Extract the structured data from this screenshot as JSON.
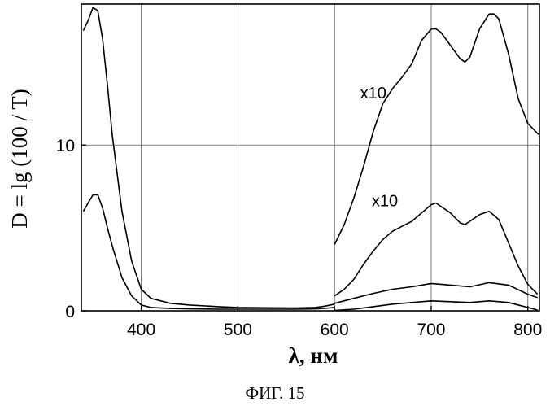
{
  "chart_data": {
    "type": "line",
    "xlabel": "λ, нм",
    "ylabel": "D = lg (100 / T)",
    "caption": "ФИГ. 15",
    "xlim": [
      338,
      812
    ],
    "ylim": [
      0,
      18.5
    ],
    "x_ticks": [
      "400",
      "500",
      "600",
      "700",
      "800"
    ],
    "y_ticks": [
      "0",
      "10"
    ],
    "grid": "on",
    "annotations": [
      {
        "text": "x10",
        "x": 640,
        "y": 12.8
      },
      {
        "text": "x10",
        "x": 652,
        "y": 6.3
      }
    ],
    "series": [
      {
        "x": [
          340,
          345,
          350,
          355,
          360,
          365,
          370,
          380,
          390,
          400,
          410,
          430,
          450,
          480,
          500,
          530,
          560,
          580,
          590,
          600
        ],
        "y": [
          16.9,
          17.5,
          18.3,
          18.1,
          16.4,
          13.6,
          10.6,
          6.0,
          3.0,
          1.3,
          0.75,
          0.45,
          0.35,
          0.25,
          0.2,
          0.18,
          0.17,
          0.2,
          0.28,
          0.4
        ]
      },
      {
        "x": [
          340,
          345,
          350,
          355,
          360,
          365,
          370,
          380,
          390,
          400,
          410,
          430,
          450,
          480,
          500,
          530,
          560,
          580,
          590,
          600
        ],
        "y": [
          6.0,
          6.5,
          7.0,
          7.0,
          6.2,
          5.0,
          3.9,
          2.0,
          0.9,
          0.35,
          0.2,
          0.14,
          0.12,
          0.1,
          0.1,
          0.1,
          0.1,
          0.12,
          0.15,
          0.2
        ]
      },
      {
        "x": [
          600,
          610,
          620,
          630,
          640,
          650,
          660,
          670,
          680,
          690,
          700,
          705,
          710,
          720,
          730,
          735,
          740,
          750,
          760,
          765,
          770,
          780,
          790,
          800,
          810,
          812
        ],
        "y": [
          4.0,
          5.2,
          6.8,
          8.7,
          10.8,
          12.5,
          13.4,
          14.1,
          14.9,
          16.3,
          17.0,
          17.0,
          16.8,
          16.0,
          15.2,
          15.0,
          15.3,
          17.0,
          17.9,
          17.9,
          17.6,
          15.5,
          12.8,
          11.3,
          10.7,
          10.6
        ]
      },
      {
        "x": [
          600,
          610,
          620,
          630,
          640,
          650,
          660,
          670,
          680,
          690,
          700,
          705,
          710,
          720,
          730,
          735,
          740,
          750,
          760,
          770,
          780,
          790,
          800,
          810
        ],
        "y": [
          0.9,
          1.3,
          1.9,
          2.8,
          3.6,
          4.3,
          4.8,
          5.1,
          5.4,
          5.9,
          6.4,
          6.5,
          6.3,
          5.9,
          5.3,
          5.2,
          5.4,
          5.8,
          6.0,
          5.5,
          4.1,
          2.7,
          1.6,
          1.0
        ]
      },
      {
        "x": [
          600,
          620,
          640,
          660,
          680,
          700,
          720,
          740,
          760,
          780,
          800,
          810
        ],
        "y": [
          0.45,
          0.75,
          1.05,
          1.3,
          1.45,
          1.65,
          1.55,
          1.45,
          1.7,
          1.55,
          1.0,
          0.8
        ]
      },
      {
        "x": [
          600,
          620,
          640,
          660,
          680,
          700,
          720,
          740,
          760,
          780,
          800,
          810
        ],
        "y": [
          0.02,
          0.1,
          0.25,
          0.4,
          0.5,
          0.6,
          0.55,
          0.5,
          0.6,
          0.5,
          0.2,
          0.05
        ]
      }
    ]
  }
}
